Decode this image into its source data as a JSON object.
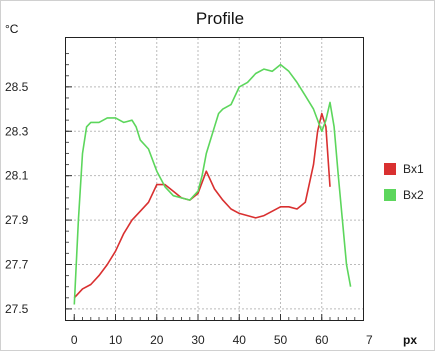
{
  "chart_data": {
    "type": "line",
    "title": "Profile",
    "y_unit": "°C",
    "x_unit": "px",
    "xlim": [
      -2,
      70
    ],
    "ylim": [
      27.45,
      28.72
    ],
    "x_ticks": [
      0,
      10,
      20,
      30,
      40,
      50,
      60
    ],
    "x_tick_labels": [
      "0",
      "10",
      "20",
      "30",
      "40",
      "50",
      "60"
    ],
    "x_partial_label": "7",
    "y_ticks": [
      27.5,
      27.7,
      27.9,
      28.1,
      28.3,
      28.5
    ],
    "y_tick_labels": [
      "27.5",
      "27.7",
      "27.9",
      "28.1",
      "28.3",
      "28.5"
    ],
    "grid": true,
    "legend_position": "right",
    "series": [
      {
        "name": "Bx1",
        "color": "#d93030",
        "x": [
          0,
          2,
          4,
          6,
          8,
          10,
          12,
          14,
          16,
          18,
          20,
          22,
          24,
          26,
          28,
          30,
          32,
          34,
          36,
          38,
          40,
          42,
          44,
          46,
          48,
          50,
          52,
          54,
          56,
          58,
          59,
          60,
          61,
          62
        ],
        "y": [
          27.55,
          27.59,
          27.61,
          27.65,
          27.7,
          27.76,
          27.84,
          27.9,
          27.94,
          27.98,
          28.06,
          28.06,
          28.03,
          28.0,
          27.99,
          28.02,
          28.12,
          28.04,
          27.99,
          27.95,
          27.93,
          27.92,
          27.91,
          27.92,
          27.94,
          27.96,
          27.96,
          27.95,
          27.98,
          28.15,
          28.3,
          28.38,
          28.32,
          28.05
        ]
      },
      {
        "name": "Bx2",
        "color": "#5cd65c",
        "x": [
          0,
          1,
          2,
          3,
          4,
          6,
          8,
          10,
          12,
          14,
          15,
          16,
          18,
          20,
          22,
          24,
          26,
          28,
          30,
          31,
          32,
          33,
          34,
          35,
          36,
          38,
          40,
          42,
          44,
          46,
          48,
          50,
          52,
          54,
          56,
          58,
          60,
          61,
          62,
          63,
          64,
          65,
          66,
          67
        ],
        "y": [
          27.52,
          27.9,
          28.2,
          28.32,
          28.34,
          28.34,
          28.36,
          28.36,
          28.34,
          28.35,
          28.32,
          28.26,
          28.22,
          28.12,
          28.05,
          28.01,
          28.0,
          27.99,
          28.03,
          28.1,
          28.2,
          28.26,
          28.32,
          28.38,
          28.4,
          28.42,
          28.5,
          28.52,
          28.56,
          28.58,
          28.57,
          28.6,
          28.57,
          28.52,
          28.46,
          28.4,
          28.3,
          28.35,
          28.43,
          28.32,
          28.1,
          27.9,
          27.7,
          27.6
        ]
      }
    ]
  }
}
